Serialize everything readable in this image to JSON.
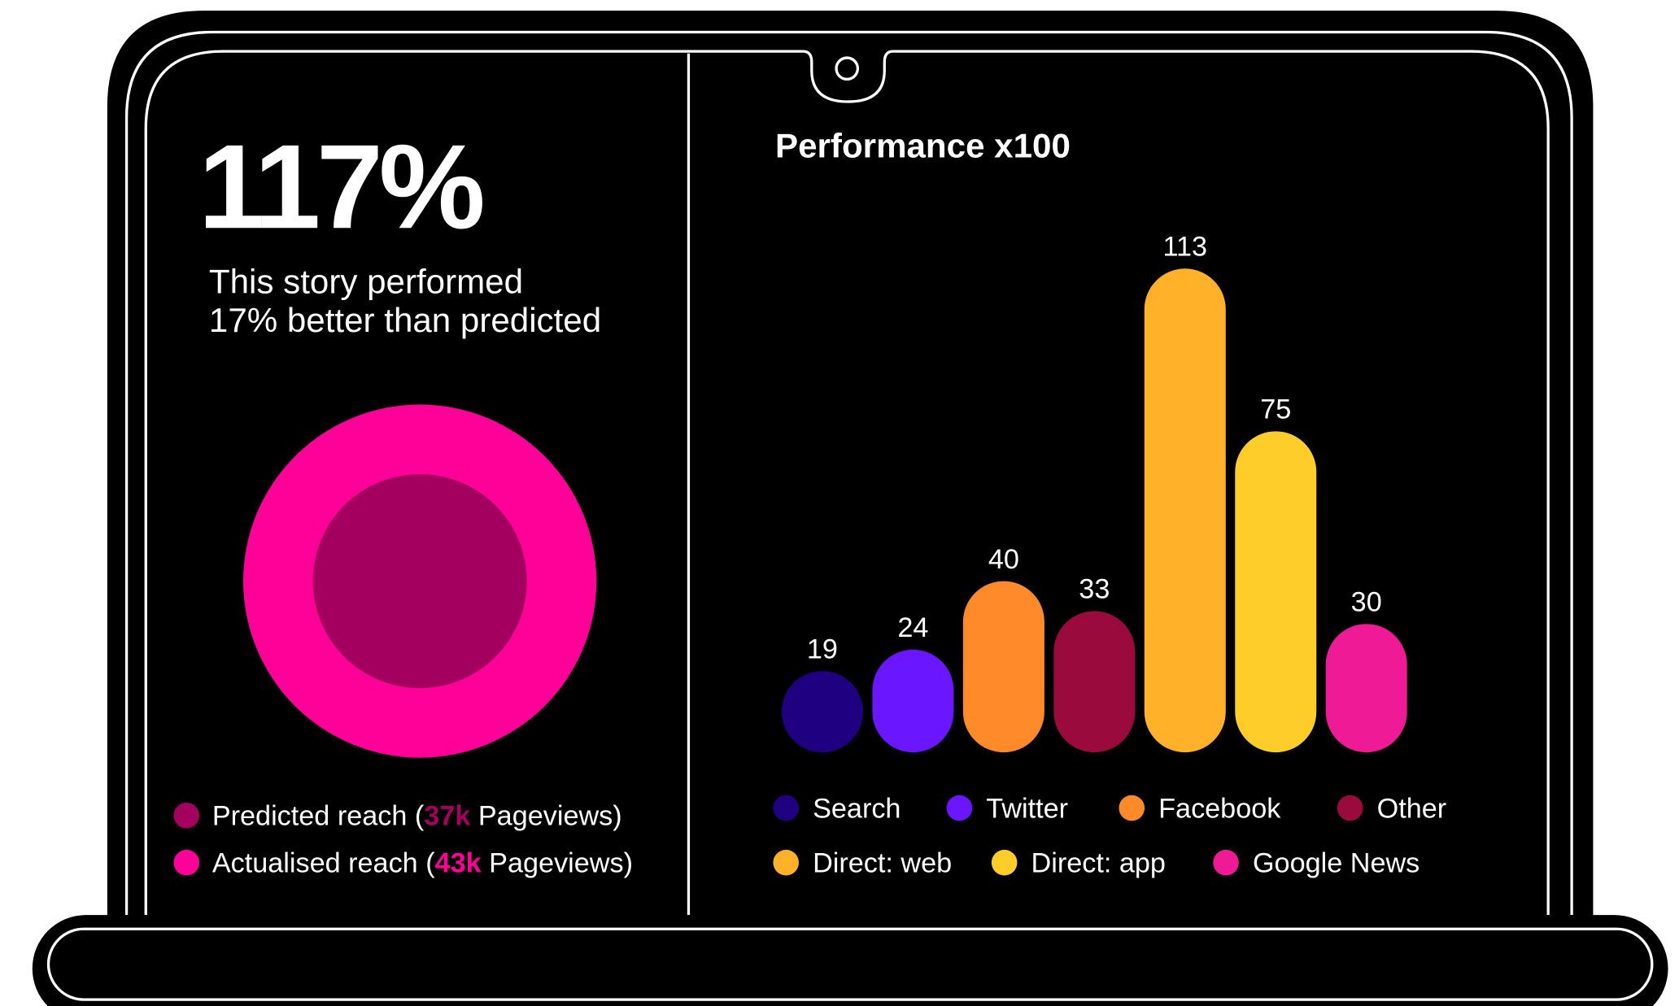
{
  "headline": "117%",
  "description": [
    "This story performed",
    "17% better than predicted"
  ],
  "reach": [
    {
      "label_before": "Predicted reach (",
      "value": "37k",
      "label_after": " Pageviews)",
      "color": "#a3005f"
    },
    {
      "label_before": "Actualised reach (",
      "value": "43k",
      "label_after": " Pageviews)",
      "color": "#ff0099"
    }
  ],
  "chart_data": {
    "type": "bar",
    "title": "Performance x100",
    "categories": [
      "Search",
      "Twitter",
      "Facebook",
      "Other",
      "Direct: web",
      "Direct: app",
      "Google News"
    ],
    "values": [
      19,
      24,
      40,
      33,
      113,
      75,
      30
    ],
    "colors": [
      "#1e0080",
      "#6a17ff",
      "#ff8a2a",
      "#9a0a3c",
      "#ffb12a",
      "#ffcd2a",
      "#ee1a96"
    ]
  }
}
